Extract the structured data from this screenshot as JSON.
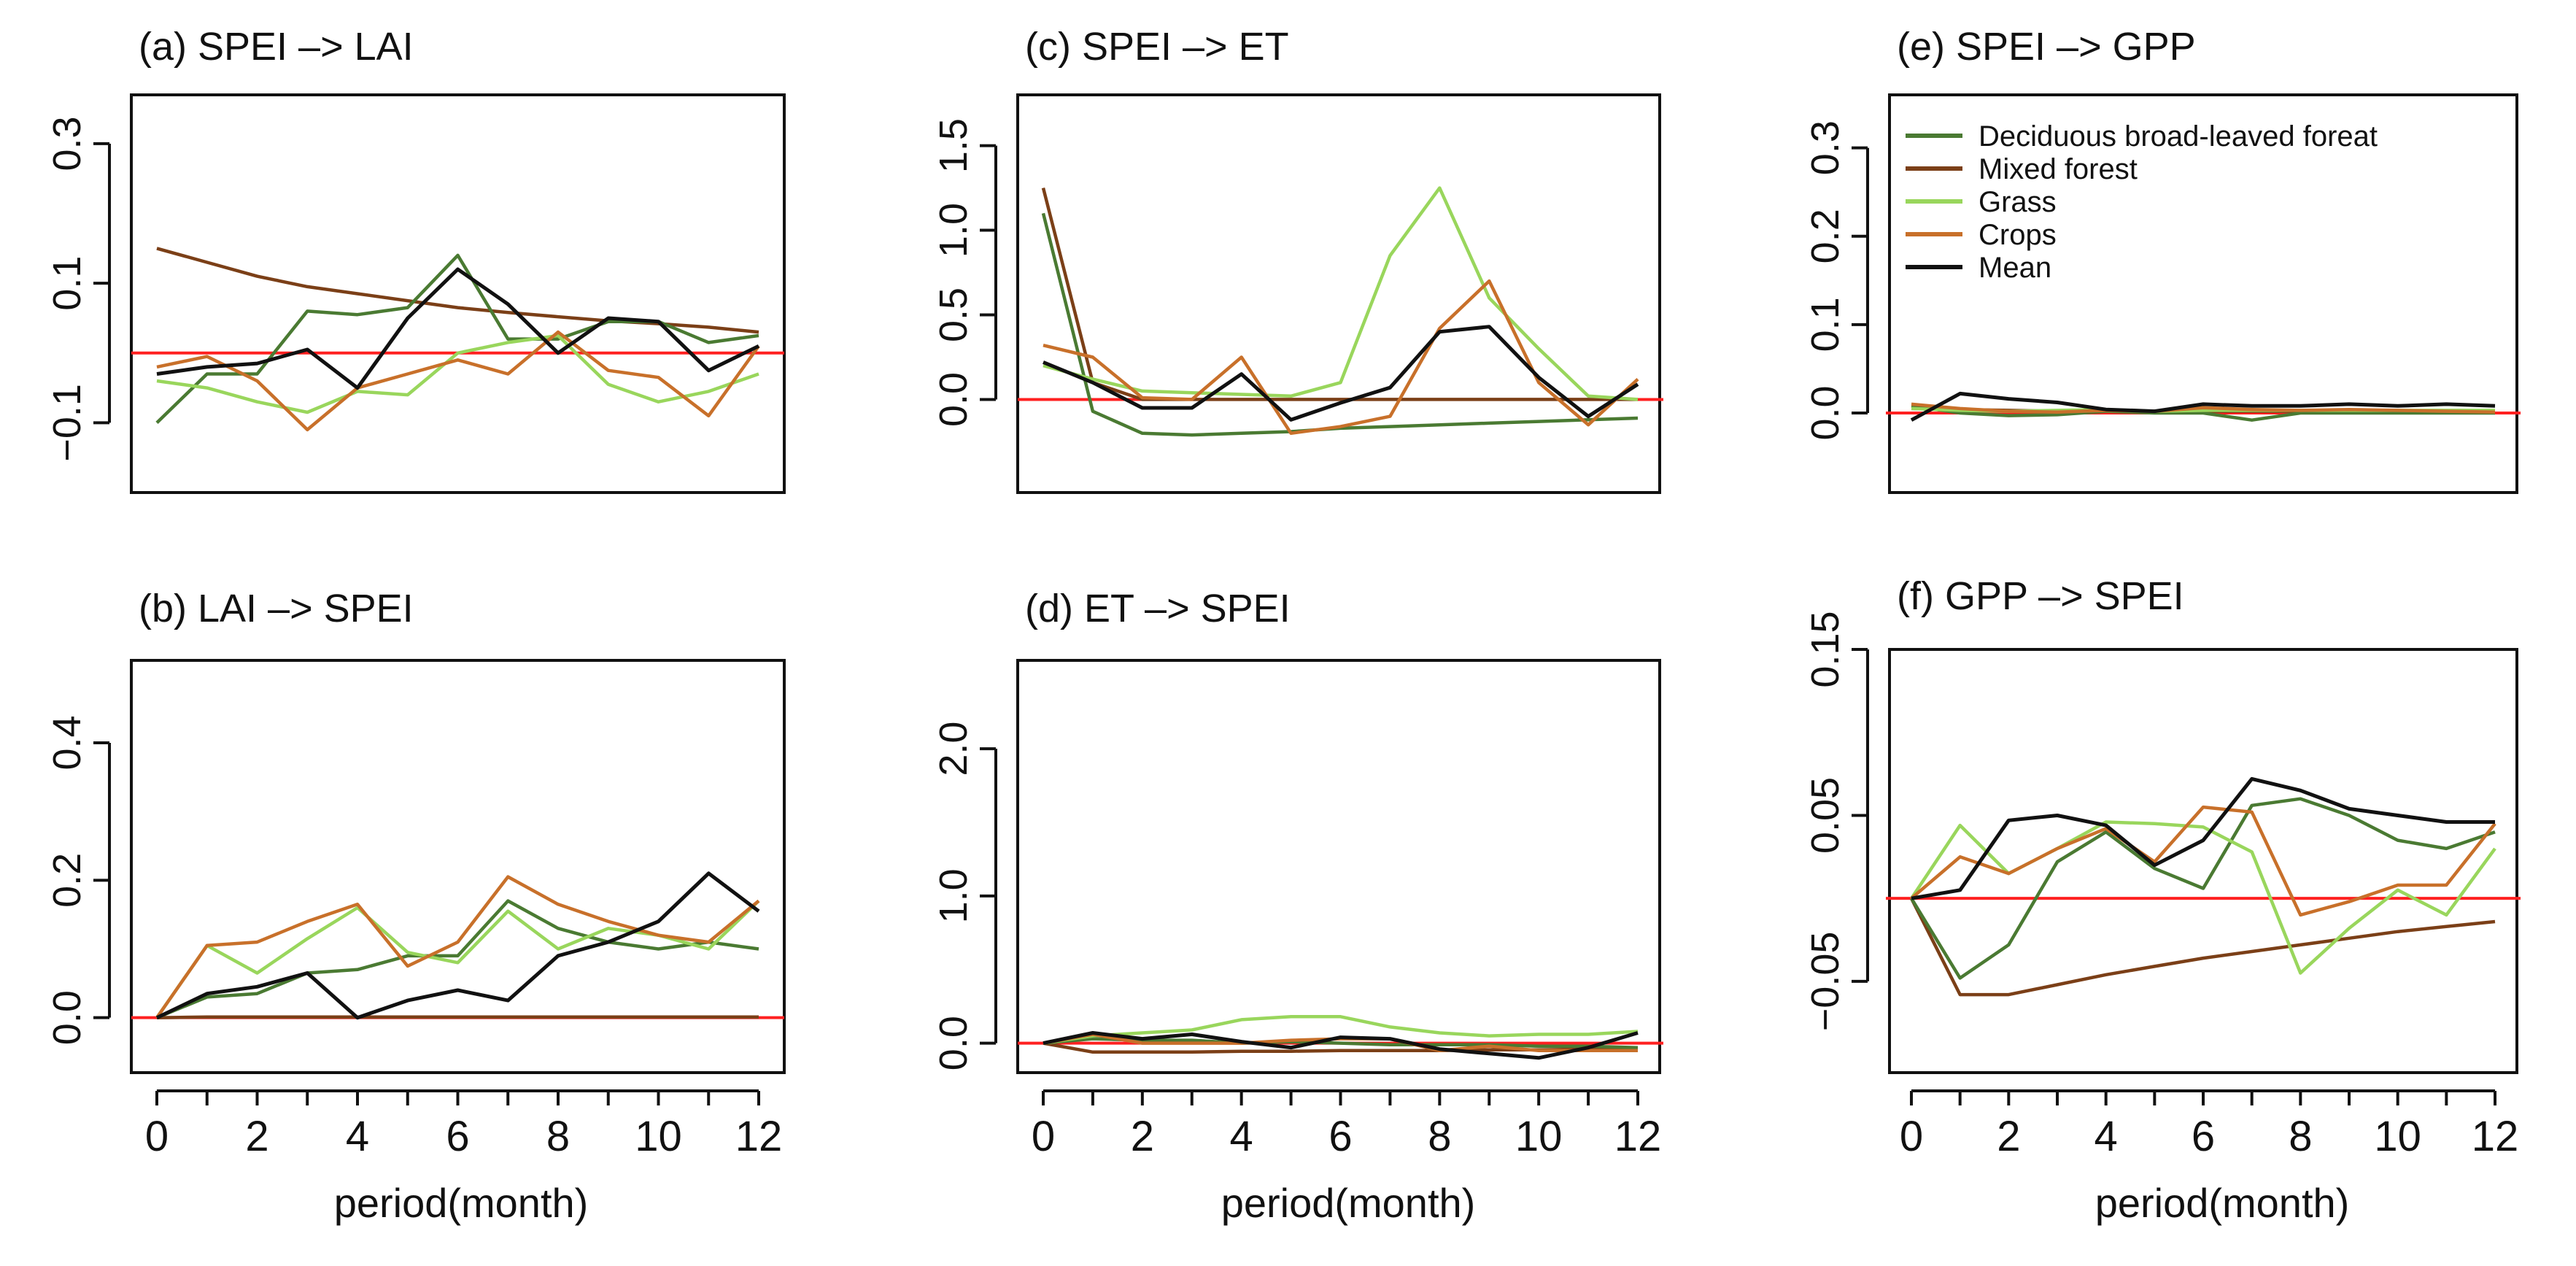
{
  "x_axis_label": "period(month)",
  "colors": {
    "deciduous": "#4a7a32",
    "mixed": "#7b3f17",
    "grass": "#99d65c",
    "crops": "#c8702a",
    "mean": "#111111",
    "zero_line": "#ff2020"
  },
  "chart_data": [
    {
      "type": "line",
      "title": "(a) SPEI –> LAI",
      "x": [
        0,
        1,
        2,
        3,
        4,
        5,
        6,
        7,
        8,
        9,
        10,
        11,
        12
      ],
      "yticks": [
        -0.1,
        0.1,
        0.3
      ],
      "ytick_labels": [
        "−0.1",
        "0.1",
        "0.3"
      ],
      "ylim": [
        -0.2,
        0.37
      ],
      "zero_line": 0,
      "series": [
        {
          "name": "Mixed forest",
          "color_key": "mixed",
          "values": [
            0.15,
            0.13,
            0.11,
            0.095,
            0.085,
            0.075,
            0.065,
            0.058,
            0.052,
            0.046,
            0.042,
            0.037,
            0.03
          ]
        },
        {
          "name": "Deciduous broad-leaved foreat",
          "color_key": "deciduous",
          "values": [
            -0.1,
            -0.03,
            -0.03,
            0.06,
            0.055,
            0.065,
            0.14,
            0.02,
            0.02,
            0.045,
            0.045,
            0.015,
            0.025
          ]
        },
        {
          "name": "Grass",
          "color_key": "grass",
          "values": [
            -0.04,
            -0.05,
            -0.07,
            -0.085,
            -0.055,
            -0.06,
            0.0,
            0.015,
            0.025,
            -0.045,
            -0.07,
            -0.055,
            -0.03
          ]
        },
        {
          "name": "Crops",
          "color_key": "crops",
          "values": [
            -0.02,
            -0.005,
            -0.04,
            -0.11,
            -0.05,
            -0.03,
            -0.01,
            -0.03,
            0.03,
            -0.025,
            -0.035,
            -0.09,
            0.01
          ]
        },
        {
          "name": "Mean",
          "color_key": "mean",
          "values": [
            -0.03,
            -0.02,
            -0.015,
            0.005,
            -0.05,
            0.05,
            0.12,
            0.07,
            0.0,
            0.05,
            0.045,
            -0.025,
            0.01
          ]
        }
      ]
    },
    {
      "type": "line",
      "title": "(c) SPEI –> ET",
      "x": [
        0,
        1,
        2,
        3,
        4,
        5,
        6,
        7,
        8,
        9,
        10,
        11,
        12
      ],
      "yticks": [
        0.0,
        0.5,
        1.0,
        1.5
      ],
      "ytick_labels": [
        "0.0",
        "0.5",
        "1.0",
        "1.5"
      ],
      "ylim": [
        -0.55,
        1.8
      ],
      "zero_line": 0,
      "series": [
        {
          "name": "Mixed forest",
          "color_key": "mixed",
          "values": [
            1.25,
            0.1,
            0.0,
            0.0,
            0.0,
            0.0,
            0.0,
            0.0,
            0.0,
            0.0,
            0.0,
            0.0,
            0.0
          ]
        },
        {
          "name": "Deciduous broad-leaved foreat",
          "color_key": "deciduous",
          "values": [
            1.1,
            -0.07,
            -0.2,
            -0.21,
            -0.2,
            -0.19,
            -0.17,
            -0.16,
            -0.15,
            -0.14,
            -0.13,
            -0.12,
            -0.11
          ]
        },
        {
          "name": "Grass",
          "color_key": "grass",
          "values": [
            0.2,
            0.12,
            0.05,
            0.04,
            0.03,
            0.02,
            0.1,
            0.85,
            1.25,
            0.6,
            0.3,
            0.02,
            0.0
          ]
        },
        {
          "name": "Crops",
          "color_key": "crops",
          "values": [
            0.32,
            0.25,
            0.01,
            0.0,
            0.25,
            -0.2,
            -0.16,
            -0.1,
            0.42,
            0.7,
            0.1,
            -0.15,
            0.12
          ]
        },
        {
          "name": "Mean",
          "color_key": "mean",
          "values": [
            0.22,
            0.1,
            -0.05,
            -0.05,
            0.15,
            -0.12,
            -0.02,
            0.07,
            0.4,
            0.43,
            0.13,
            -0.1,
            0.09
          ]
        }
      ]
    },
    {
      "type": "line",
      "title": "(e) SPEI –> GPP",
      "x": [
        0,
        1,
        2,
        3,
        4,
        5,
        6,
        7,
        8,
        9,
        10,
        11,
        12
      ],
      "yticks": [
        0.0,
        0.1,
        0.2,
        0.3
      ],
      "ytick_labels": [
        "0.0",
        "0.1",
        "0.2",
        "0.3"
      ],
      "ylim": [
        -0.09,
        0.36
      ],
      "zero_line": 0,
      "series": [
        {
          "name": "Mixed forest",
          "color_key": "mixed",
          "values": [
            0.005,
            0.004,
            0.003,
            0.002,
            0.002,
            0.002,
            0.002,
            0.002,
            0.002,
            0.002,
            0.002,
            0.002,
            0.002
          ]
        },
        {
          "name": "Deciduous broad-leaved foreat",
          "color_key": "deciduous",
          "values": [
            0.008,
            0.0,
            -0.003,
            -0.002,
            0.002,
            0.0,
            0.0,
            -0.008,
            0.0,
            0.0,
            0.0,
            0.0,
            0.0
          ]
        },
        {
          "name": "Grass",
          "color_key": "grass",
          "values": [
            0.005,
            0.003,
            0.002,
            0.003,
            0.004,
            0.002,
            0.003,
            0.003,
            0.003,
            0.003,
            0.003,
            0.003,
            0.003
          ]
        },
        {
          "name": "Crops",
          "color_key": "crops",
          "values": [
            0.01,
            0.005,
            0.002,
            0.001,
            0.003,
            0.002,
            0.006,
            0.004,
            0.003,
            0.004,
            0.003,
            0.002,
            0.001
          ]
        },
        {
          "name": "Mean",
          "color_key": "mean",
          "values": [
            -0.008,
            0.022,
            0.016,
            0.012,
            0.004,
            0.002,
            0.01,
            0.008,
            0.008,
            0.01,
            0.008,
            0.01,
            0.008
          ]
        }
      ],
      "legend": {
        "position": "top-left",
        "entries": [
          {
            "label": "Deciduous broad-leaved foreat",
            "color_key": "deciduous"
          },
          {
            "label": "Mixed forest",
            "color_key": "mixed"
          },
          {
            "label": "Grass",
            "color_key": "grass"
          },
          {
            "label": "Crops",
            "color_key": "crops"
          },
          {
            "label": "Mean",
            "color_key": "mean"
          }
        ]
      }
    },
    {
      "type": "line",
      "title": "(b) LAI –> SPEI",
      "x": [
        0,
        1,
        2,
        3,
        4,
        5,
        6,
        7,
        8,
        9,
        10,
        11,
        12
      ],
      "yticks": [
        0.0,
        0.2,
        0.4
      ],
      "ytick_labels": [
        "0.0",
        "0.2",
        "0.4"
      ],
      "ylim": [
        -0.08,
        0.52
      ],
      "zero_line": 0,
      "xticks": [
        0,
        1,
        2,
        3,
        4,
        5,
        6,
        7,
        8,
        9,
        10,
        11,
        12
      ],
      "xtick_labels": [
        "0",
        "2",
        "4",
        "6",
        "8",
        "10",
        "12"
      ],
      "xtick_label_values": [
        0,
        2,
        4,
        6,
        8,
        10,
        12
      ],
      "xlabel": "period(month)",
      "series": [
        {
          "name": "Mixed forest",
          "color_key": "mixed",
          "values": [
            0.0,
            0.001,
            0.001,
            0.001,
            0.001,
            0.001,
            0.001,
            0.001,
            0.001,
            0.001,
            0.001,
            0.001,
            0.001
          ]
        },
        {
          "name": "Deciduous broad-leaved foreat",
          "color_key": "deciduous",
          "values": [
            0.0,
            0.03,
            0.035,
            0.065,
            0.07,
            0.09,
            0.09,
            0.17,
            0.13,
            0.11,
            0.1,
            0.11,
            0.1
          ]
        },
        {
          "name": "Grass",
          "color_key": "grass",
          "values": [
            0.0,
            0.105,
            0.065,
            0.115,
            0.16,
            0.095,
            0.08,
            0.155,
            0.1,
            0.13,
            0.12,
            0.1,
            0.17
          ]
        },
        {
          "name": "Crops",
          "color_key": "crops",
          "values": [
            0.0,
            0.105,
            0.11,
            0.14,
            0.165,
            0.075,
            0.11,
            0.205,
            0.165,
            0.14,
            0.12,
            0.11,
            0.17
          ]
        },
        {
          "name": "Mean",
          "color_key": "mean",
          "values": [
            0.0,
            0.035,
            0.045,
            0.065,
            0.0,
            0.025,
            0.04,
            0.025,
            0.09,
            0.11,
            0.14,
            0.21,
            0.155
          ]
        }
      ]
    },
    {
      "type": "line",
      "title": "(d) ET –> SPEI",
      "x": [
        0,
        1,
        2,
        3,
        4,
        5,
        6,
        7,
        8,
        9,
        10,
        11,
        12
      ],
      "yticks": [
        0.0,
        1.0,
        2.0
      ],
      "ytick_labels": [
        "0.0",
        "1.0",
        "2.0"
      ],
      "ylim": [
        -0.2,
        2.6
      ],
      "zero_line": 0,
      "xticks": [
        0,
        1,
        2,
        3,
        4,
        5,
        6,
        7,
        8,
        9,
        10,
        11,
        12
      ],
      "xtick_labels": [
        "0",
        "2",
        "4",
        "6",
        "8",
        "10",
        "12"
      ],
      "xtick_label_values": [
        0,
        2,
        4,
        6,
        8,
        10,
        12
      ],
      "xlabel": "period(month)",
      "series": [
        {
          "name": "Mixed forest",
          "color_key": "mixed",
          "values": [
            0.0,
            -0.06,
            -0.06,
            -0.06,
            -0.055,
            -0.055,
            -0.05,
            -0.05,
            -0.05,
            -0.045,
            -0.045,
            -0.04,
            -0.04
          ]
        },
        {
          "name": "Deciduous broad-leaved foreat",
          "color_key": "deciduous",
          "values": [
            0.0,
            0.03,
            0.02,
            0.02,
            0.0,
            0.01,
            0.0,
            -0.01,
            -0.01,
            -0.01,
            -0.02,
            -0.02,
            -0.03
          ]
        },
        {
          "name": "Grass",
          "color_key": "grass",
          "values": [
            0.0,
            0.05,
            0.07,
            0.09,
            0.16,
            0.18,
            0.18,
            0.11,
            0.07,
            0.05,
            0.06,
            0.06,
            0.08
          ]
        },
        {
          "name": "Crops",
          "color_key": "crops",
          "values": [
            0.0,
            0.06,
            0.0,
            0.0,
            0.0,
            0.02,
            0.03,
            0.03,
            -0.05,
            -0.02,
            -0.05,
            -0.05,
            -0.05
          ]
        },
        {
          "name": "Mean",
          "color_key": "mean",
          "values": [
            0.0,
            0.07,
            0.03,
            0.06,
            0.01,
            -0.03,
            0.04,
            0.03,
            -0.04,
            -0.07,
            -0.1,
            -0.03,
            0.07
          ]
        }
      ]
    },
    {
      "type": "line",
      "title": "(f) GPP –> SPEI",
      "x": [
        0,
        1,
        2,
        3,
        4,
        5,
        6,
        7,
        8,
        9,
        10,
        11,
        12
      ],
      "yticks": [
        -0.05,
        0.05,
        0.15
      ],
      "ytick_labels": [
        "−0.05",
        "0.05",
        "0.15"
      ],
      "ylim": [
        -0.105,
        0.15
      ],
      "zero_line": 0,
      "xticks": [
        0,
        1,
        2,
        3,
        4,
        5,
        6,
        7,
        8,
        9,
        10,
        11,
        12
      ],
      "xtick_labels": [
        "0",
        "2",
        "4",
        "6",
        "8",
        "10",
        "12"
      ],
      "xtick_label_values": [
        0,
        2,
        4,
        6,
        8,
        10,
        12
      ],
      "xlabel": "period(month)",
      "series": [
        {
          "name": "Mixed forest",
          "color_key": "mixed",
          "values": [
            0.0,
            -0.058,
            -0.058,
            -0.052,
            -0.046,
            -0.041,
            -0.036,
            -0.032,
            -0.028,
            -0.024,
            -0.02,
            -0.017,
            -0.014
          ]
        },
        {
          "name": "Deciduous broad-leaved foreat",
          "color_key": "deciduous",
          "values": [
            0.0,
            -0.048,
            -0.028,
            0.022,
            0.04,
            0.018,
            0.006,
            0.056,
            0.06,
            0.05,
            0.035,
            0.03,
            0.04
          ]
        },
        {
          "name": "Grass",
          "color_key": "grass",
          "values": [
            0.0,
            0.044,
            0.015,
            0.03,
            0.046,
            0.045,
            0.043,
            0.028,
            -0.045,
            -0.018,
            0.005,
            -0.01,
            0.03
          ]
        },
        {
          "name": "Crops",
          "color_key": "crops",
          "values": [
            0.0,
            0.025,
            0.015,
            0.03,
            0.042,
            0.022,
            0.055,
            0.052,
            -0.01,
            -0.002,
            0.008,
            0.008,
            0.045
          ]
        },
        {
          "name": "Mean",
          "color_key": "mean",
          "values": [
            0.0,
            0.005,
            0.047,
            0.05,
            0.044,
            0.02,
            0.035,
            0.072,
            0.065,
            0.054,
            0.05,
            0.046,
            0.046
          ]
        }
      ]
    }
  ]
}
